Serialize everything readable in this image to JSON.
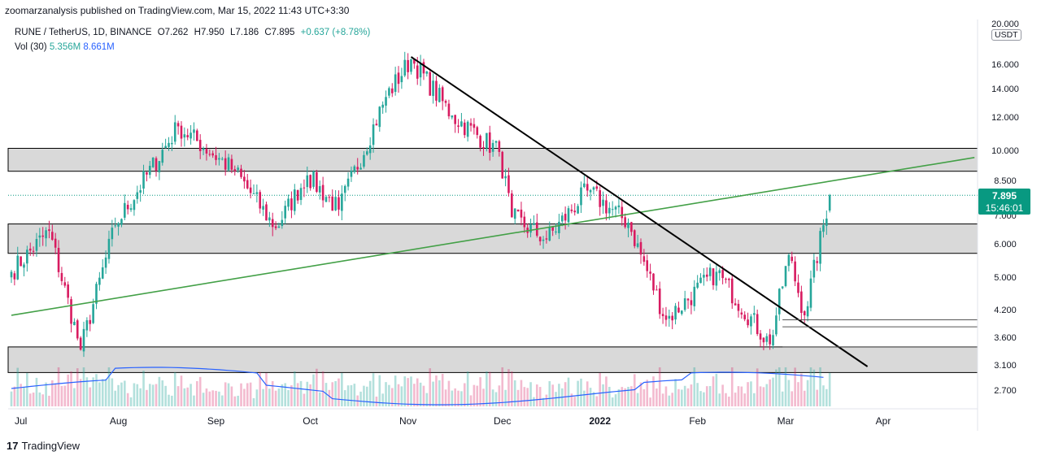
{
  "header": {
    "publisher_line": "zoomarzanalysis published on TradingView.com, Mar 15, 2022 11:43 UTC+3:30"
  },
  "legend": {
    "symbol": "RUNE / TetherUS, 1D, BINANCE",
    "open": "O7.262",
    "high": "H7.950",
    "low": "L7.186",
    "close": "C7.895",
    "change": "+0.637 (+8.78%)",
    "volume_label": "Vol (30)",
    "volume_value": "5.356M",
    "volume_ma": "8.661M"
  },
  "price_axis": {
    "currency": "USDT",
    "labels": [
      "20.000",
      "16.000",
      "14.000",
      "12.000",
      "10.000",
      "8.500",
      "7.000",
      "6.000",
      "5.000",
      "4.200",
      "3.600",
      "3.100",
      "2.700"
    ],
    "last_price": "7.895",
    "countdown": "15:46:01"
  },
  "time_axis": {
    "labels": [
      "Jul",
      "Aug",
      "Sep",
      "Oct",
      "Nov",
      "Dec",
      "2022",
      "Feb",
      "Mar",
      "Apr"
    ],
    "bold": "2022"
  },
  "footer": {
    "brand": "TradingView",
    "logo_glyph": "17"
  },
  "colors": {
    "up": "#26a69a",
    "down": "#d81b60",
    "trend_green": "#43a047",
    "trend_black": "#000000",
    "zone_fill": "#d9d9d9",
    "volume_ma": "#2962ff",
    "last_price": "#089981"
  },
  "chart_data": {
    "type": "candlestick",
    "scale": "log",
    "ylim": [
      2.6,
      20.0
    ],
    "interval": "1D",
    "start_date": "2021-06-28",
    "end_date": "2022-03-15",
    "key_closes": [
      {
        "date": "2021-06-28",
        "close": 5.2
      },
      {
        "date": "2021-07-10",
        "close": 6.5
      },
      {
        "date": "2021-07-20",
        "close": 3.4
      },
      {
        "date": "2021-07-31",
        "close": 6.7
      },
      {
        "date": "2021-08-20",
        "close": 11.5
      },
      {
        "date": "2021-09-07",
        "close": 9.0
      },
      {
        "date": "2021-09-20",
        "close": 6.6
      },
      {
        "date": "2021-09-30",
        "close": 8.8
      },
      {
        "date": "2021-10-10",
        "close": 7.3
      },
      {
        "date": "2021-10-25",
        "close": 13.5
      },
      {
        "date": "2021-11-02",
        "close": 16.6
      },
      {
        "date": "2021-11-15",
        "close": 12.2
      },
      {
        "date": "2021-11-30",
        "close": 10.0
      },
      {
        "date": "2021-12-04",
        "close": 7.0
      },
      {
        "date": "2021-12-15",
        "close": 6.2
      },
      {
        "date": "2021-12-28",
        "close": 8.1
      },
      {
        "date": "2022-01-10",
        "close": 6.8
      },
      {
        "date": "2022-01-22",
        "close": 4.0
      },
      {
        "date": "2022-02-07",
        "close": 5.2
      },
      {
        "date": "2022-02-24",
        "close": 3.5
      },
      {
        "date": "2022-03-02",
        "close": 5.7
      },
      {
        "date": "2022-03-07",
        "close": 4.1
      },
      {
        "date": "2022-03-15",
        "close": 7.895
      }
    ],
    "zones": [
      {
        "low": 9.0,
        "high": 10.2
      },
      {
        "low": 5.75,
        "high": 6.75
      },
      {
        "low": 3.0,
        "high": 3.45
      }
    ],
    "trendlines": [
      {
        "color": "green",
        "from": {
          "date": "2021-06-28",
          "value": 4.1
        },
        "to": {
          "date": "2022-04-30",
          "value": 9.7
        }
      },
      {
        "color": "black",
        "from": {
          "date": "2021-11-02",
          "value": 16.8
        },
        "to": {
          "date": "2022-03-27",
          "value": 3.1
        }
      }
    ],
    "horizontal_levels": [
      4.0,
      3.85,
      3.45
    ]
  }
}
